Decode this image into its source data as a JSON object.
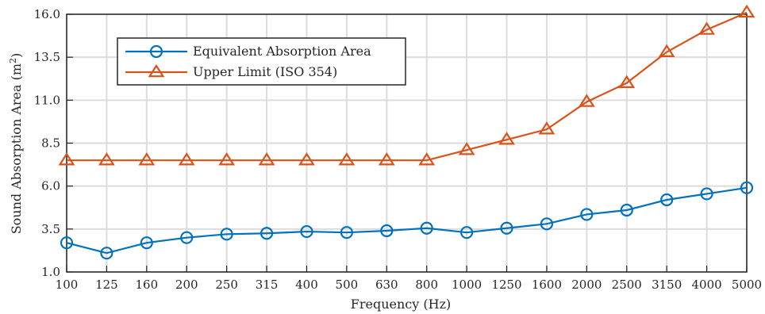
{
  "chart_data": {
    "type": "line",
    "xlabel": "Frequency (Hz)",
    "ylabel": "Sound Absorption Area (m",
    "ylabel_sup": "2",
    "ylabel_close": ")",
    "categories": [
      "100",
      "125",
      "160",
      "200",
      "250",
      "315",
      "400",
      "500",
      "630",
      "800",
      "1000",
      "1250",
      "1600",
      "2000",
      "2500",
      "3150",
      "4000",
      "5000"
    ],
    "yticks": [
      "1.0",
      "3.5",
      "6.0",
      "8.5",
      "11.0",
      "13.5",
      "16.0"
    ],
    "ylim": [
      1.0,
      16.0
    ],
    "grid": true,
    "legend_position": "top-left",
    "series": [
      {
        "name": "Equivalent Absorption Area",
        "color": "#0072bd",
        "marker": "circle",
        "values": [
          2.7,
          2.1,
          2.7,
          3.0,
          3.2,
          3.25,
          3.35,
          3.3,
          3.4,
          3.55,
          3.3,
          3.55,
          3.8,
          4.35,
          4.6,
          5.2,
          5.55,
          5.9
        ]
      },
      {
        "name": "Upper Limit (ISO 354)",
        "color": "#d95319",
        "marker": "triangle",
        "values": [
          7.5,
          7.5,
          7.5,
          7.5,
          7.5,
          7.5,
          7.5,
          7.5,
          7.5,
          7.5,
          8.1,
          8.7,
          9.3,
          10.9,
          12.0,
          13.8,
          15.1,
          16.1
        ]
      }
    ]
  }
}
